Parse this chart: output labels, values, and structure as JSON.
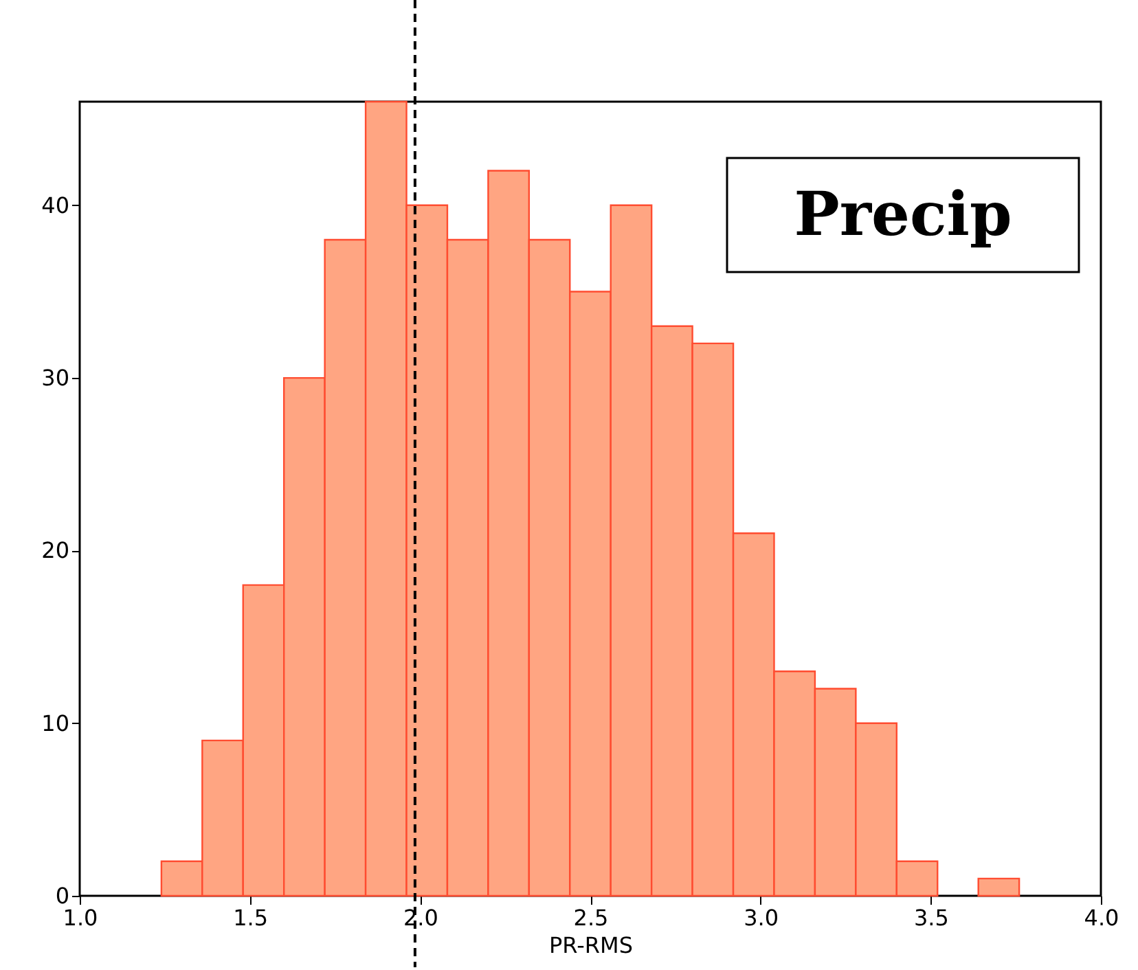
{
  "chart_data": {
    "type": "histogram",
    "xlabel": "PR-RMS",
    "bins": [
      1.24,
      1.36,
      1.48,
      1.6,
      1.72,
      1.84,
      1.96,
      2.08,
      2.2,
      2.32,
      2.44,
      2.56,
      2.68,
      2.8,
      2.92,
      3.04,
      3.16,
      3.28,
      3.4,
      3.52,
      3.64,
      3.76
    ],
    "values": [
      2,
      9,
      18,
      30,
      38,
      46,
      40,
      38,
      42,
      38,
      35,
      40,
      33,
      32,
      21,
      13,
      12,
      10,
      2,
      0,
      1
    ],
    "color": "#ffa582",
    "xlim": [
      1.0,
      4.0
    ],
    "xticks": [
      {
        "value": 1,
        "label": "1.0"
      },
      1.5,
      {
        "value": 2,
        "label": "2.0"
      },
      2.5,
      {
        "value": 3,
        "label": "3.0"
      },
      3.5,
      {
        "value": 4,
        "label": "4.0"
      }
    ],
    "ylim": [
      0,
      46
    ],
    "yticks": [
      0,
      10,
      20,
      30,
      40
    ],
    "ref_lines": [
      {
        "axis": "x",
        "value": 1.985,
        "color": "#000000",
        "line_style": "dashed"
      }
    ],
    "annotations": [
      "Precip"
    ],
    "grid": false
  }
}
